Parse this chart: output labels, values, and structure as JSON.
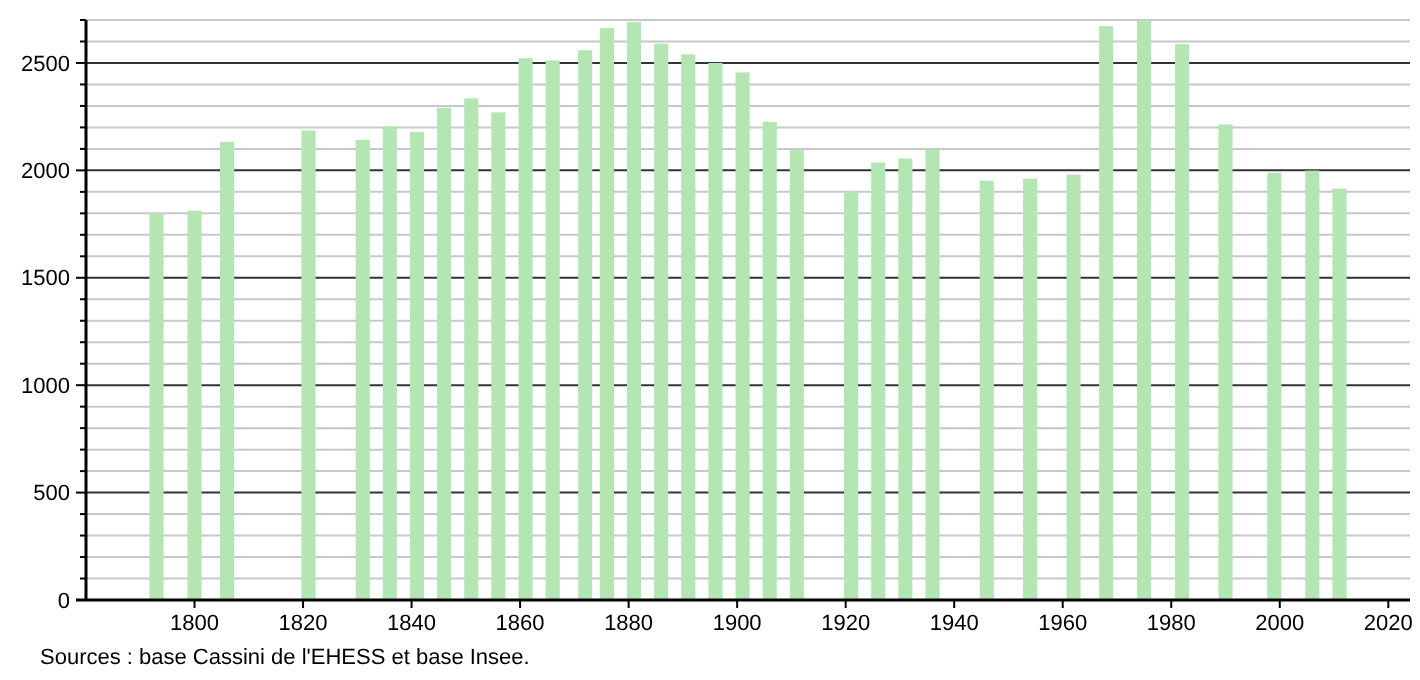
{
  "chart_data": {
    "type": "bar",
    "color": "#b3e6b3",
    "x": [
      1793,
      1800,
      1806,
      1821,
      1831,
      1836,
      1841,
      1846,
      1851,
      1856,
      1861,
      1866,
      1872,
      1876,
      1881,
      1886,
      1891,
      1896,
      1901,
      1906,
      1911,
      1921,
      1926,
      1931,
      1936,
      1946,
      1954,
      1962,
      1968,
      1975,
      1982,
      1990,
      1999,
      2006,
      2011
    ],
    "values": [
      1800,
      1812,
      2133,
      2186,
      2142,
      2204,
      2179,
      2291,
      2335,
      2270,
      2522,
      2512,
      2559,
      2662,
      2690,
      2590,
      2540,
      2500,
      2456,
      2226,
      2095,
      1902,
      2036,
      2055,
      2095,
      1952,
      1961,
      1980,
      2671,
      2700,
      2587,
      2214,
      1989,
      1999,
      1915
    ],
    "xlim": [
      1780,
      2024
    ],
    "xticks": [
      1800,
      1820,
      1840,
      1860,
      1880,
      1900,
      1920,
      1940,
      1960,
      1980,
      2000,
      2020
    ],
    "ylim": [
      0,
      2700
    ],
    "yticks": [
      0,
      {
        "value": 100,
        "label": null
      },
      {
        "value": 200,
        "label": null
      },
      {
        "value": 300,
        "label": null
      },
      {
        "value": 400,
        "label": null
      },
      500,
      {
        "value": 600,
        "label": null
      },
      {
        "value": 700,
        "label": null
      },
      {
        "value": 800,
        "label": null
      },
      {
        "value": 900,
        "label": null
      },
      1000,
      {
        "value": 1100,
        "label": null
      },
      {
        "value": 1200,
        "label": null
      },
      {
        "value": 1300,
        "label": null
      },
      {
        "value": 1400,
        "label": null
      },
      1500,
      {
        "value": 1600,
        "label": null
      },
      {
        "value": 1700,
        "label": null
      },
      {
        "value": 1800,
        "label": null
      },
      {
        "value": 1900,
        "label": null
      },
      2000,
      {
        "value": 2100,
        "label": null
      },
      {
        "value": 2200,
        "label": null
      },
      {
        "value": 2300,
        "label": null
      },
      {
        "value": 2400,
        "label": null
      },
      2500,
      {
        "value": 2600,
        "label": null
      },
      {
        "value": 2700,
        "label": null
      }
    ],
    "grid": "y",
    "annotations": [
      "Sources : base Cassini de l'EHESS et base Insee."
    ]
  }
}
